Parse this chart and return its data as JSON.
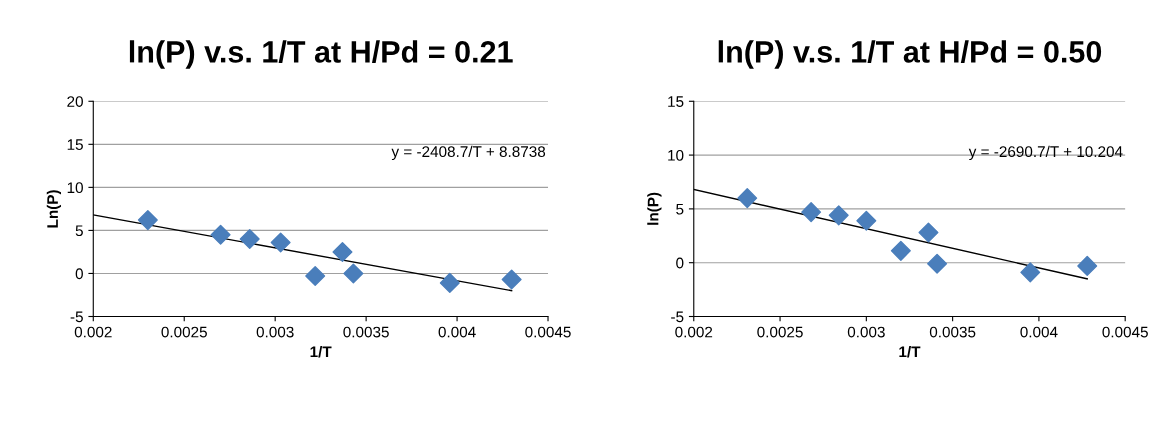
{
  "chart_data": [
    {
      "type": "scatter",
      "title": "ln(P) v.s. 1/T at H/Pd = 0.21",
      "xlabel": "1/T",
      "ylabel": "Ln(P)",
      "x": [
        0.0023,
        0.0027,
        0.00286,
        0.00303,
        0.00322,
        0.00337,
        0.00343,
        0.00396,
        0.0043
      ],
      "series": [
        {
          "color": "#4a7ebb",
          "marker": "diamond",
          "values": [
            6.2,
            4.5,
            4.0,
            3.6,
            -0.3,
            2.5,
            0.0,
            -1.1,
            -0.7
          ]
        },
        {
          "type": "line",
          "color": "#000000",
          "x": [
            0.002,
            0.0043
          ],
          "values": [
            6.8,
            -2.0
          ]
        }
      ],
      "annotations": [
        "y = -2408.7/T + 8.8738"
      ],
      "xlim": [
        0.002,
        0.0045
      ],
      "xticks": [
        0.002,
        0.0025,
        0.003,
        0.0035,
        0.004,
        0.0045
      ],
      "ylim": [
        -5,
        20
      ],
      "yticks": [
        -5,
        0,
        5,
        10,
        15,
        20
      ],
      "grid": "y",
      "legend": false
    },
    {
      "type": "scatter",
      "title": "ln(P) v.s. 1/T at H/Pd = 0.50",
      "xlabel": "1/T",
      "ylabel": "ln(P)",
      "x": [
        0.00231,
        0.00268,
        0.00284,
        0.003,
        0.0032,
        0.00336,
        0.00341,
        0.00395,
        0.00428
      ],
      "series": [
        {
          "color": "#4a7ebb",
          "marker": "diamond",
          "values": [
            6.0,
            4.7,
            4.4,
            3.9,
            1.1,
            2.8,
            -0.1,
            -0.9,
            -0.3
          ]
        },
        {
          "type": "line",
          "color": "#000000",
          "x": [
            0.002,
            0.00428
          ],
          "values": [
            6.8,
            -1.5
          ]
        }
      ],
      "annotations": [
        "y = -2690.7/T + 10.204"
      ],
      "xlim": [
        0.002,
        0.0045
      ],
      "xticks": [
        0.002,
        0.0025,
        0.003,
        0.0035,
        0.004,
        0.0045
      ],
      "ylim": [
        -5,
        15
      ],
      "yticks": [
        -5,
        0,
        5,
        10,
        15
      ],
      "grid": "y",
      "legend": false
    }
  ]
}
